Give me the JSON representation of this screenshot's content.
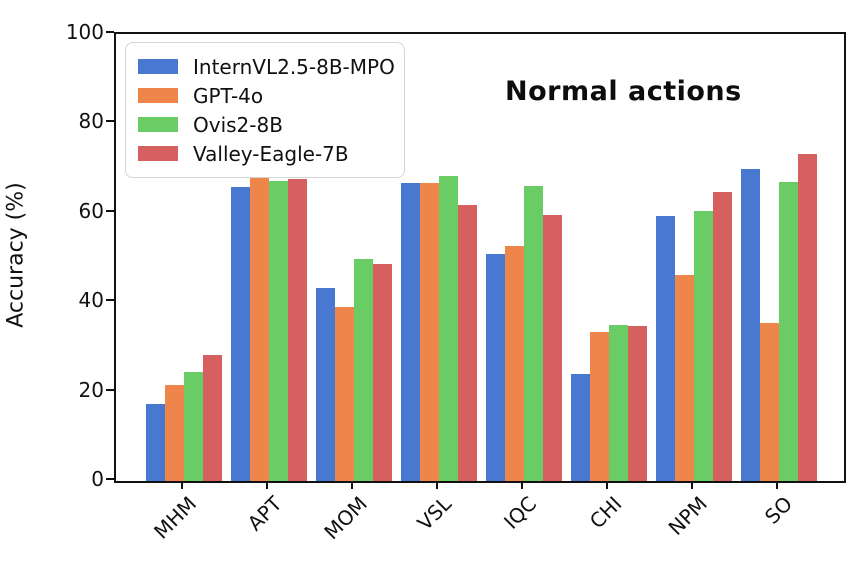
{
  "chart_data": {
    "type": "bar",
    "title": "Normal actions",
    "ylabel": "Accuracy (%)",
    "categories": [
      "MHM",
      "APT",
      "MOM",
      "VSL",
      "IQC",
      "CHI",
      "NPM",
      "SO"
    ],
    "series": [
      {
        "name": "InternVL2.5-8B-MPO",
        "color": "#4878d0",
        "values": [
          17.2,
          65.7,
          43.1,
          66.7,
          50.7,
          24.0,
          59.2,
          69.9
        ]
      },
      {
        "name": "GPT-4o",
        "color": "#ee854a",
        "values": [
          21.4,
          68.0,
          38.9,
          66.7,
          52.5,
          33.3,
          46.0,
          35.4
        ]
      },
      {
        "name": "Ovis2-8B",
        "color": "#6acc64",
        "values": [
          24.5,
          67.2,
          49.7,
          68.2,
          66.1,
          34.8,
          60.3,
          67.0
        ]
      },
      {
        "name": "Valley-Eagle-7B",
        "color": "#d65f5f",
        "values": [
          28.1,
          67.6,
          48.6,
          61.7,
          59.5,
          34.7,
          64.7,
          73.1
        ]
      }
    ],
    "ylim": [
      0,
      100
    ],
    "yticks": [
      0,
      20,
      40,
      60,
      80,
      100
    ],
    "grid": false,
    "legend_position": "upper-left",
    "axis_color": "#111111"
  }
}
